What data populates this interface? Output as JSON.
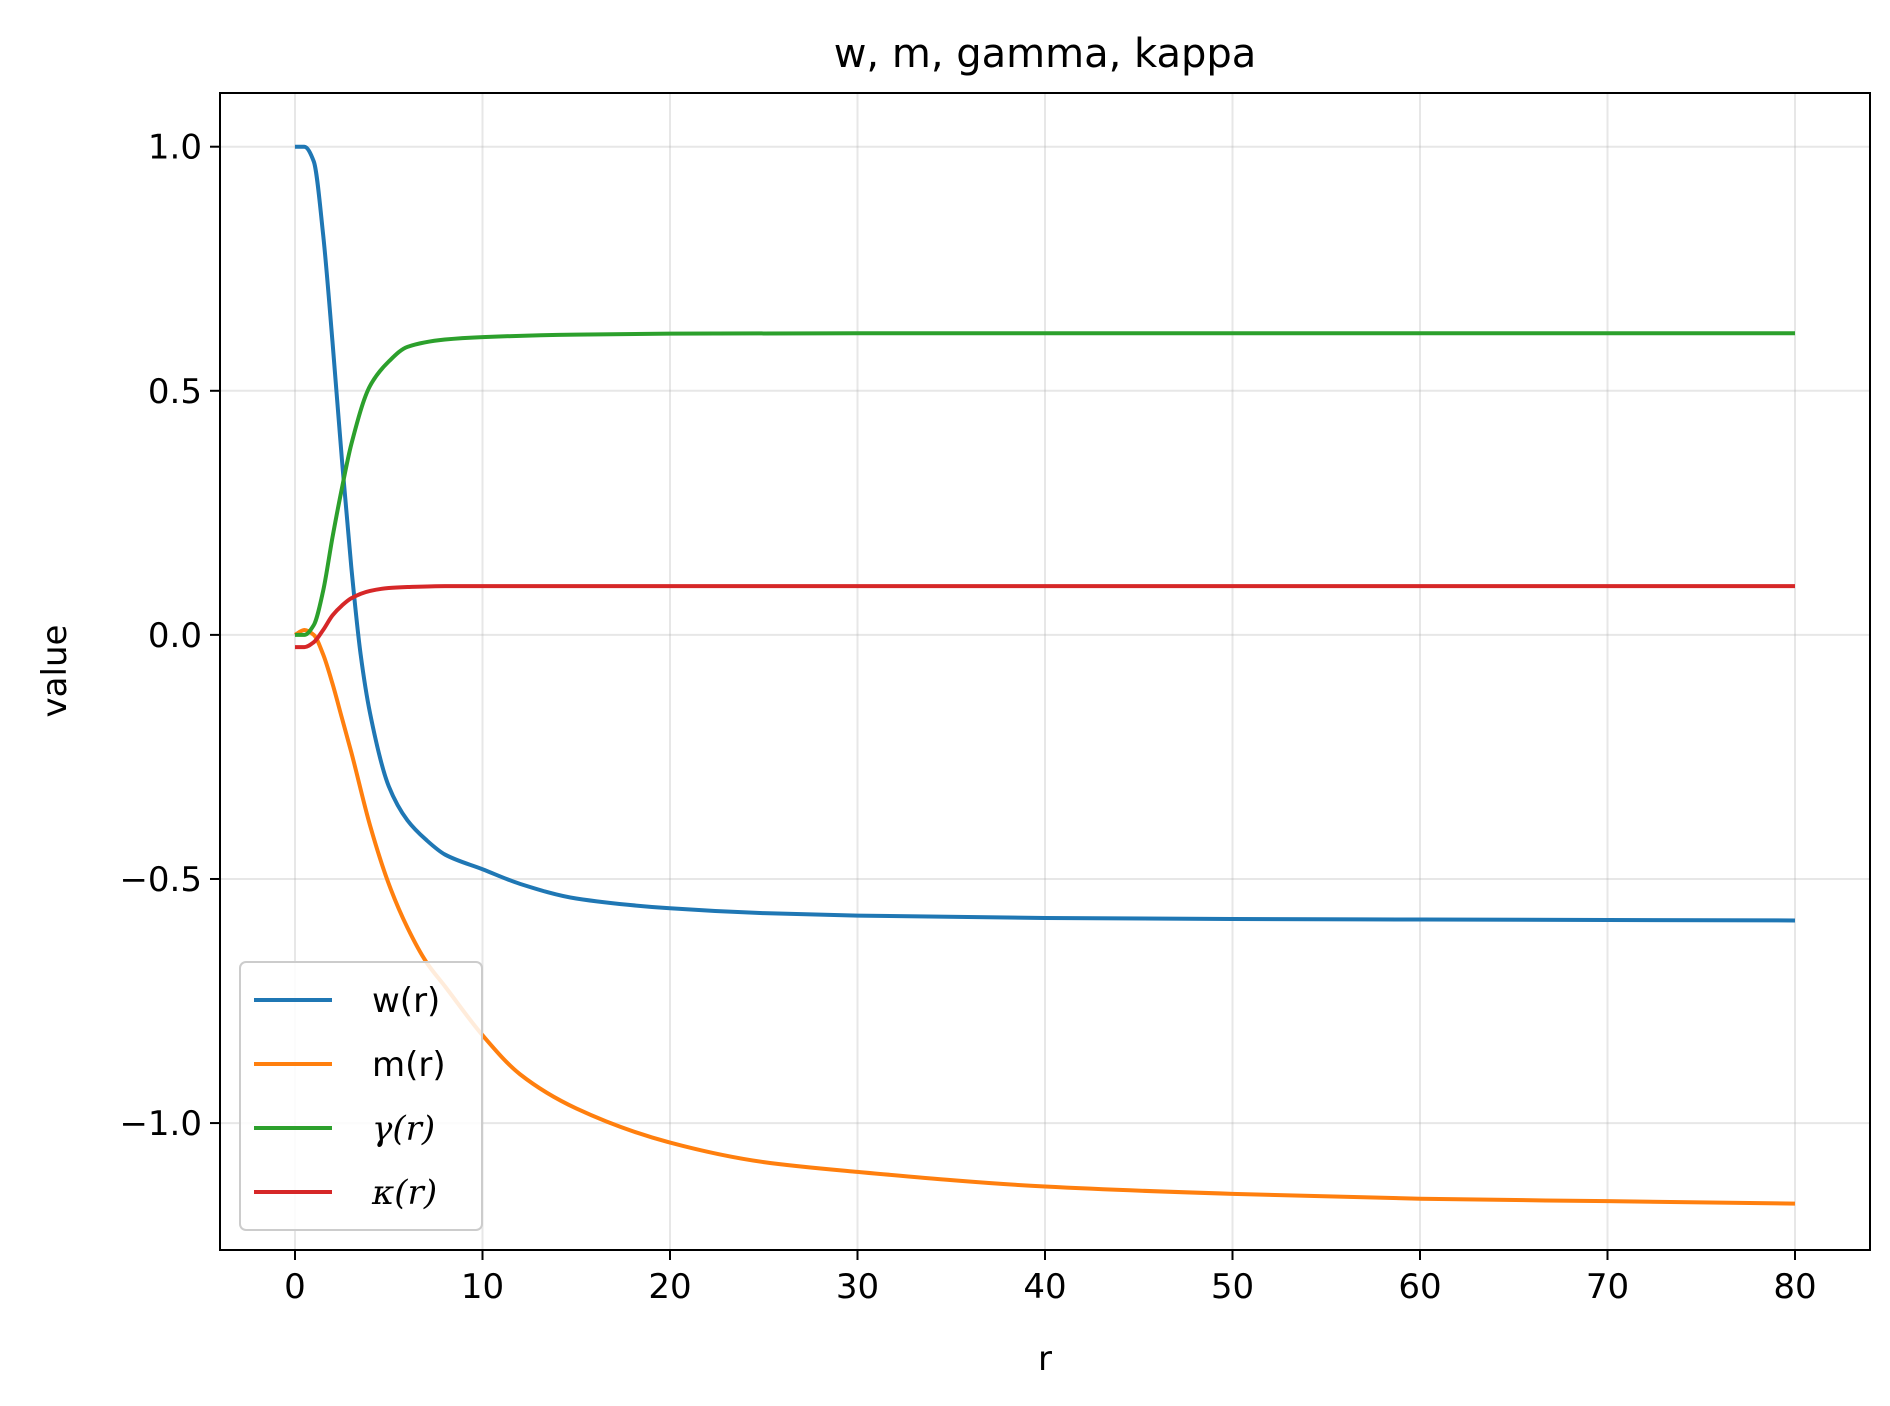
{
  "chart_data": {
    "type": "line",
    "title": "w, m, gamma, kappa",
    "xlabel": "r",
    "ylabel": "value",
    "xlim": [
      -4,
      84
    ],
    "ylim": [
      -1.26,
      1.11
    ],
    "xticks": [
      0,
      10,
      20,
      30,
      40,
      50,
      60,
      70,
      80
    ],
    "xtick_labels": [
      "0",
      "10",
      "20",
      "30",
      "40",
      "50",
      "60",
      "70",
      "80"
    ],
    "yticks": [
      1.0,
      0.5,
      0.0,
      -0.5,
      -1.0
    ],
    "ytick_labels": [
      "1.0",
      "0.5",
      "0.0",
      "−0.5",
      "−1.0"
    ],
    "grid": true,
    "legend_position": "lower-left",
    "series": [
      {
        "name": "w(r)",
        "color": "#1f77b4",
        "x": [
          0,
          0.5,
          1,
          1.5,
          2,
          2.5,
          3,
          3.5,
          4,
          5,
          6,
          7,
          8,
          10,
          12,
          15,
          20,
          25,
          30,
          40,
          50,
          60,
          70,
          80
        ],
        "y": [
          1.0,
          1.0,
          0.97,
          0.82,
          0.6,
          0.36,
          0.14,
          -0.04,
          -0.16,
          -0.31,
          -0.38,
          -0.42,
          -0.45,
          -0.48,
          -0.51,
          -0.54,
          -0.56,
          -0.57,
          -0.575,
          -0.58,
          -0.582,
          -0.583,
          -0.584,
          -0.585
        ]
      },
      {
        "name": "m(r)",
        "color": "#ff7f0e",
        "x": [
          0,
          0.5,
          1,
          1.5,
          2,
          2.5,
          3,
          4,
          5,
          6,
          7,
          8,
          10,
          12,
          15,
          20,
          25,
          30,
          40,
          50,
          60,
          70,
          80
        ],
        "y": [
          0.0,
          0.01,
          0.0,
          -0.04,
          -0.1,
          -0.17,
          -0.24,
          -0.39,
          -0.51,
          -0.6,
          -0.67,
          -0.72,
          -0.82,
          -0.9,
          -0.97,
          -1.04,
          -1.08,
          -1.1,
          -1.13,
          -1.145,
          -1.155,
          -1.16,
          -1.165
        ]
      },
      {
        "name": "γ(r)",
        "color": "#2ca02c",
        "x": [
          0,
          0.5,
          1,
          1.5,
          2,
          2.5,
          3,
          4,
          5,
          6,
          8,
          10,
          15,
          20,
          30,
          40,
          50,
          60,
          70,
          80
        ],
        "y": [
          0.0,
          0.0,
          0.02,
          0.09,
          0.2,
          0.3,
          0.39,
          0.51,
          0.56,
          0.59,
          0.605,
          0.61,
          0.615,
          0.617,
          0.618,
          0.618,
          0.618,
          0.618,
          0.618,
          0.618
        ]
      },
      {
        "name": "κ(r)",
        "color": "#d62728",
        "x": [
          0,
          0.5,
          1,
          1.5,
          2,
          2.5,
          3,
          4,
          5,
          6,
          8,
          10,
          20,
          30,
          40,
          50,
          60,
          70,
          80
        ],
        "y": [
          -0.025,
          -0.025,
          -0.015,
          0.01,
          0.04,
          0.06,
          0.075,
          0.09,
          0.096,
          0.098,
          0.1,
          0.1,
          0.1,
          0.1,
          0.1,
          0.1,
          0.1,
          0.1,
          0.1
        ]
      }
    ]
  }
}
